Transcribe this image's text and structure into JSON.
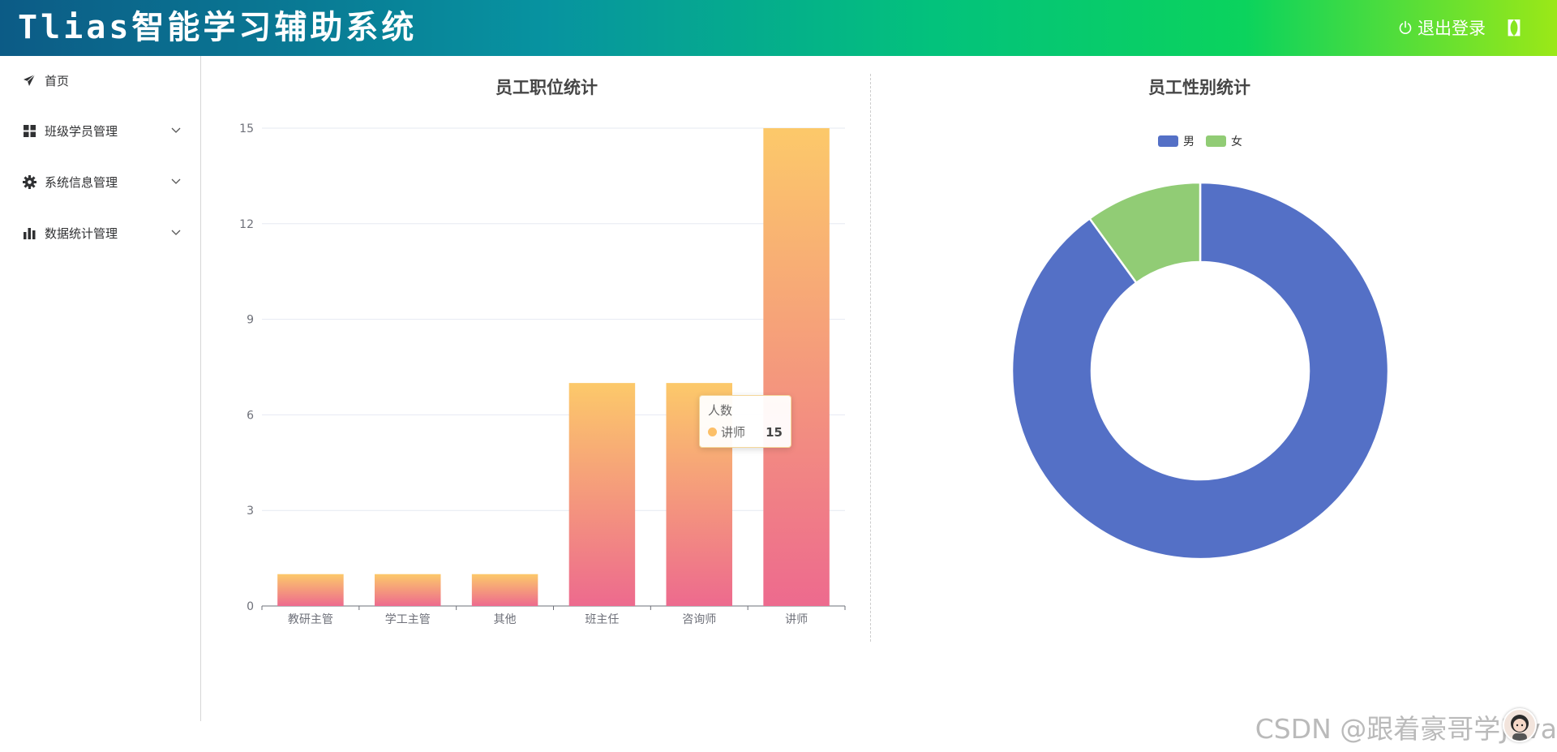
{
  "header": {
    "title": "Tlias智能学习辅助系统",
    "logout_label": "退出登录",
    "logout_suffix": "【】"
  },
  "sidebar": {
    "items": [
      {
        "label": "首页",
        "icon": "send-icon"
      },
      {
        "label": "班级学员管理",
        "icon": "grid-icon"
      },
      {
        "label": "系统信息管理",
        "icon": "gear-icon"
      },
      {
        "label": "数据统计管理",
        "icon": "bar-chart-icon"
      }
    ]
  },
  "colors": {
    "bar_top": "#fcc96a",
    "bar_bottom": "#ed6a8e",
    "male": "#5470c6",
    "female": "#91cc75"
  },
  "tooltip": {
    "title": "人数",
    "name": "讲师",
    "value": "15"
  },
  "watermark": "CSDN @跟着豪哥学Java",
  "chart_data": [
    {
      "type": "bar",
      "title": "员工职位统计",
      "categories": [
        "教研主管",
        "学工主管",
        "其他",
        "班主任",
        "咨询师",
        "讲师"
      ],
      "series": [
        {
          "name": "人数",
          "values": [
            1,
            1,
            1,
            7,
            7,
            15
          ]
        }
      ],
      "yticks": [
        "0",
        "3",
        "6",
        "9",
        "12",
        "15"
      ],
      "ylim": [
        0,
        15
      ],
      "grid": true
    },
    {
      "type": "pie",
      "title": "员工性别统计",
      "donut": true,
      "legend": "top-center",
      "slices": [
        {
          "name": "男",
          "value": 90
        },
        {
          "name": "女",
          "value": 10
        }
      ]
    }
  ]
}
